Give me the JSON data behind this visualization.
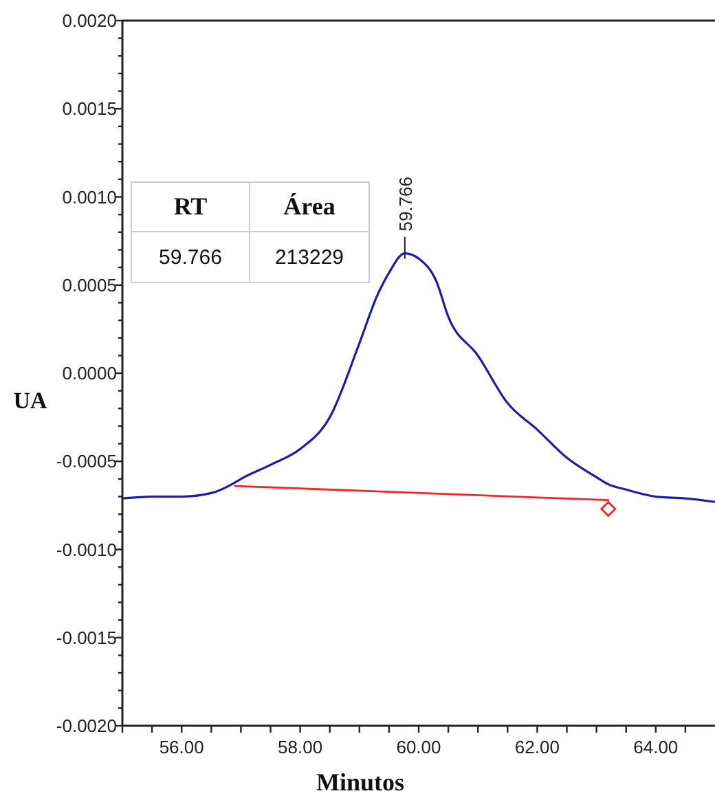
{
  "chart_data": {
    "type": "line",
    "xlabel": "Minutos",
    "ylabel": "UA",
    "xlim": [
      55,
      65
    ],
    "ylim": [
      -0.002,
      0.002
    ],
    "xticks": [
      {
        "value": 55,
        "label": null
      },
      {
        "value": 55.5,
        "label": null
      },
      {
        "value": 56,
        "label": "56.00"
      },
      {
        "value": 56.5,
        "label": null
      },
      {
        "value": 57,
        "label": null
      },
      {
        "value": 57.5,
        "label": null
      },
      {
        "value": 58,
        "label": "58.00"
      },
      {
        "value": 58.5,
        "label": null
      },
      {
        "value": 59,
        "label": null
      },
      {
        "value": 59.5,
        "label": null
      },
      {
        "value": 60,
        "label": "60.00"
      },
      {
        "value": 60.5,
        "label": null
      },
      {
        "value": 61,
        "label": null
      },
      {
        "value": 61.5,
        "label": null
      },
      {
        "value": 62,
        "label": "62.00"
      },
      {
        "value": 62.5,
        "label": null
      },
      {
        "value": 63,
        "label": null
      },
      {
        "value": 63.5,
        "label": null
      },
      {
        "value": 64,
        "label": "64.00"
      },
      {
        "value": 64.5,
        "label": null
      }
    ],
    "yticks": [
      {
        "value": -0.002,
        "label": "-0.0020"
      },
      {
        "value": -0.0015,
        "label": "-0.0015"
      },
      {
        "value": -0.001,
        "label": "-0.0010"
      },
      {
        "value": -0.0005,
        "label": "-0.0005"
      },
      {
        "value": 0,
        "label": "0.0000"
      },
      {
        "value": 0.0005,
        "label": "0.0005"
      },
      {
        "value": 0.001,
        "label": "0.0010"
      },
      {
        "value": 0.0015,
        "label": "0.0015"
      },
      {
        "value": 0.002,
        "label": "0.0020"
      }
    ],
    "grid": false,
    "marker": "none",
    "line_style": "solid",
    "series": [
      {
        "color": "#1c1ca8",
        "x": [
          55,
          55.5,
          56,
          56.5,
          56.9,
          57,
          57.5,
          58,
          58.5,
          59,
          59.3,
          59.5,
          59.766,
          60,
          60.3,
          60.5,
          61,
          61.5,
          62,
          62.5,
          63,
          63.2,
          63.5,
          64,
          64.5,
          65
        ],
        "values": [
          -0.00071,
          -0.0007,
          -0.0007,
          -0.00068,
          -0.00062,
          -0.0006,
          -0.00052,
          -0.00043,
          -0.00025,
          0.00017,
          0.00044,
          0.00057,
          0.00068,
          0.00065,
          0.00052,
          0.00032,
          0.0001,
          -0.00017,
          -0.00032,
          -0.00048,
          -0.00059,
          -0.00063,
          -0.00066,
          -0.0007,
          -0.00071,
          -0.00073
        ]
      },
      {
        "color": "#ff2020",
        "x": [
          56.9,
          63.2
        ],
        "values": [
          -0.00064,
          -0.00072
        ]
      },
      {
        "type": "scatter",
        "marker": "diamond",
        "color": "#ff2020",
        "x": [
          63.2
        ],
        "values": [
          -0.00077
        ]
      }
    ],
    "annotations": [
      {
        "text": "59.766",
        "x": 59.766,
        "y": 0.00068
      },
      "RT",
      "Área",
      "59.766",
      "213229"
    ]
  }
}
